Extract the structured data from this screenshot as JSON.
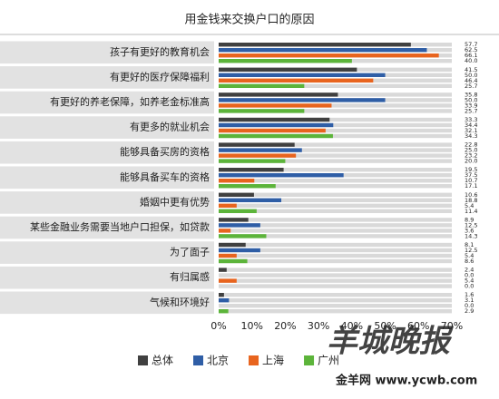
{
  "chart_data": {
    "type": "bar",
    "orientation": "horizontal",
    "title": "用金钱来交换户口的原因",
    "categories": [
      "孩子有更好的教育机会",
      "有更好的医疗保障福利",
      "有更好的养老保障，如养老金标准高",
      "有更多的就业机会",
      "能够具备买房的资格",
      "能够具备买车的资格",
      "婚姻中更有优势",
      "某些金融业务需要当地户口担保，如贷款",
      "为了面子",
      "有归属感",
      "气候和环境好"
    ],
    "series": [
      {
        "name": "总体",
        "color": "#404040",
        "values": [
          57.7,
          41.5,
          35.8,
          33.3,
          22.8,
          19.5,
          10.6,
          8.9,
          8.1,
          2.4,
          1.6
        ],
        "value_labels": [
          "57.7",
          "41.5",
          "35.8",
          "33.3",
          "22.8",
          "19.5",
          "10.6",
          "8.9",
          "8.1",
          "2.4",
          "1.6"
        ]
      },
      {
        "name": "北京",
        "color": "#2f5ea6",
        "values": [
          62.5,
          50.0,
          50.0,
          34.4,
          25.0,
          37.5,
          18.8,
          12.5,
          12.5,
          0.0,
          3.1
        ],
        "value_labels": [
          "62.5",
          "50.0",
          "50.0",
          "34.4",
          "25.0",
          "37.5",
          "18.8",
          "12.5",
          "12.5",
          "0.0",
          "3.1"
        ]
      },
      {
        "name": "上海",
        "color": "#e8641e",
        "values": [
          66.1,
          46.4,
          33.9,
          32.1,
          23.2,
          10.7,
          5.4,
          3.6,
          5.4,
          5.4,
          0.0
        ],
        "value_labels": [
          "66.1",
          "46.4",
          "33.9",
          "32.1",
          "23.2",
          "10.7",
          "5.4",
          "3.6",
          "5.4",
          "5.4",
          "0.0"
        ]
      },
      {
        "name": "广州",
        "color": "#5cb43a",
        "values": [
          40.0,
          25.7,
          25.7,
          34.3,
          20.0,
          17.1,
          11.4,
          14.3,
          8.6,
          0.0,
          2.9
        ],
        "value_labels": [
          "40.0",
          "25.7",
          "25.7",
          "34.3",
          "20.0",
          "17.1",
          "11.4",
          "14.3",
          "8.6",
          "0.0",
          "2.9"
        ]
      }
    ],
    "xlim": [
      0,
      70
    ],
    "xticks": [
      {
        "value": 0,
        "label": "0%"
      },
      {
        "value": 10,
        "label": "10%"
      },
      {
        "value": 20,
        "label": "20%"
      },
      {
        "value": 30,
        "label": "30%"
      },
      {
        "value": 40,
        "label": "40%"
      },
      {
        "value": 50,
        "label": "50%"
      },
      {
        "value": 60,
        "label": "60%"
      },
      {
        "value": 70,
        "label": "70%"
      }
    ],
    "legend": "bottom",
    "watermark": "羊城晚报",
    "watermark_site": "金羊网 www.ycwb.com"
  }
}
